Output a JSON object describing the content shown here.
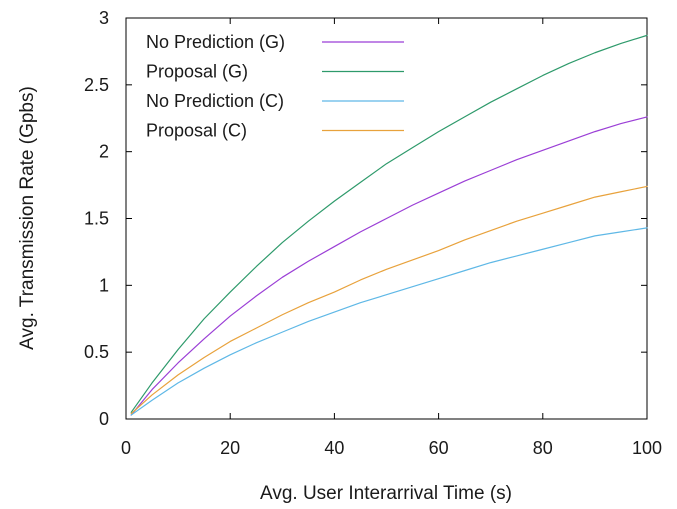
{
  "chart_data": {
    "type": "line",
    "title": "",
    "xlabel": "Avg. User Interarrival Time (s)",
    "ylabel": "Avg. Transmission Rate (Gpbs)",
    "xlim": [
      0,
      100
    ],
    "ylim": [
      0,
      3
    ],
    "xticks": [
      0,
      20,
      40,
      60,
      80,
      100
    ],
    "yticks": [
      0,
      0.5,
      1,
      1.5,
      2,
      2.5,
      3
    ],
    "xtick_labels": [
      "0",
      "20",
      "40",
      "60",
      "80",
      "100"
    ],
    "ytick_labels": [
      "0",
      "0.5",
      "1",
      "1.5",
      "2",
      "2.5",
      "3"
    ],
    "grid": false,
    "legend_position": "top-left",
    "x": [
      1,
      5,
      10,
      15,
      20,
      25,
      30,
      35,
      40,
      45,
      50,
      55,
      60,
      65,
      70,
      75,
      80,
      85,
      90,
      95,
      100
    ],
    "series": [
      {
        "name": "No Prediction (G)",
        "color": "#9b3fd6",
        "values": [
          0.03,
          0.22,
          0.42,
          0.6,
          0.77,
          0.92,
          1.06,
          1.18,
          1.29,
          1.4,
          1.5,
          1.6,
          1.69,
          1.78,
          1.86,
          1.94,
          2.01,
          2.08,
          2.15,
          2.21,
          2.26
        ]
      },
      {
        "name": "Proposal (G)",
        "color": "#2e9a6b",
        "values": [
          0.05,
          0.27,
          0.52,
          0.75,
          0.95,
          1.14,
          1.32,
          1.48,
          1.63,
          1.77,
          1.91,
          2.03,
          2.15,
          2.26,
          2.37,
          2.47,
          2.57,
          2.66,
          2.74,
          2.81,
          2.87
        ]
      },
      {
        "name": "No Prediction (C)",
        "color": "#5fb8e6",
        "values": [
          0.03,
          0.14,
          0.27,
          0.38,
          0.48,
          0.57,
          0.65,
          0.73,
          0.8,
          0.87,
          0.93,
          0.99,
          1.05,
          1.11,
          1.17,
          1.22,
          1.27,
          1.32,
          1.37,
          1.4,
          1.43
        ]
      },
      {
        "name": "Proposal (C)",
        "color": "#e8a23c",
        "values": [
          0.04,
          0.18,
          0.33,
          0.46,
          0.58,
          0.68,
          0.78,
          0.87,
          0.95,
          1.04,
          1.12,
          1.19,
          1.26,
          1.34,
          1.41,
          1.48,
          1.54,
          1.6,
          1.66,
          1.7,
          1.74
        ]
      }
    ]
  }
}
